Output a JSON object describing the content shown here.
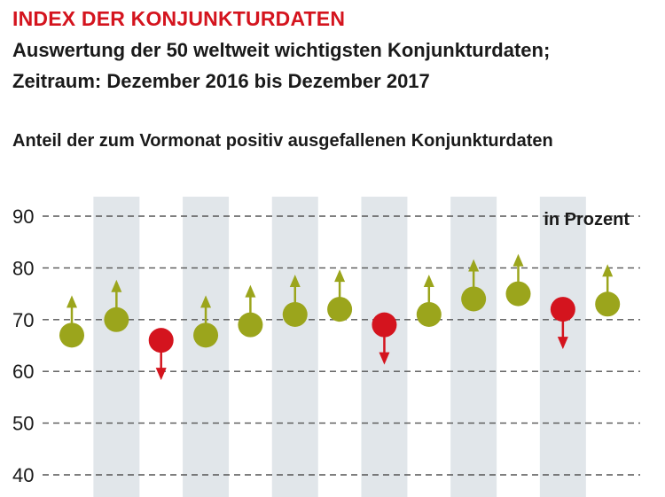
{
  "header": {
    "title": "INDEX DER KONJUNKTURDATEN",
    "subtitle_line1": "Auswertung der 50 weltweit wichtigsten Konjunkturdaten;",
    "subtitle_line2": "Zeitraum: Dezember 2016 bis Dezember 2017",
    "caption": "Anteil der zum Vormonat positiv ausgefallenen Konjunkturdaten"
  },
  "colors": {
    "up": "#9ba51c",
    "down": "#d4141e",
    "band": "#e1e6ea",
    "grid": "#555555",
    "text": "#1a1a1a"
  },
  "chart_data": {
    "type": "scatter",
    "ylabel": "",
    "unit_label": "in Prozent",
    "ylim": [
      40,
      90
    ],
    "yticks": [
      40,
      50,
      60,
      70,
      80,
      90
    ],
    "grid": "dashed-horizontal",
    "alternating_bands": true,
    "values": [
      67,
      70,
      66,
      67,
      69,
      71,
      72,
      69,
      71,
      74,
      75,
      72,
      73
    ],
    "direction": [
      "up",
      "up",
      "down",
      "up",
      "up",
      "up",
      "up",
      "down",
      "up",
      "up",
      "up",
      "down",
      "up"
    ]
  }
}
